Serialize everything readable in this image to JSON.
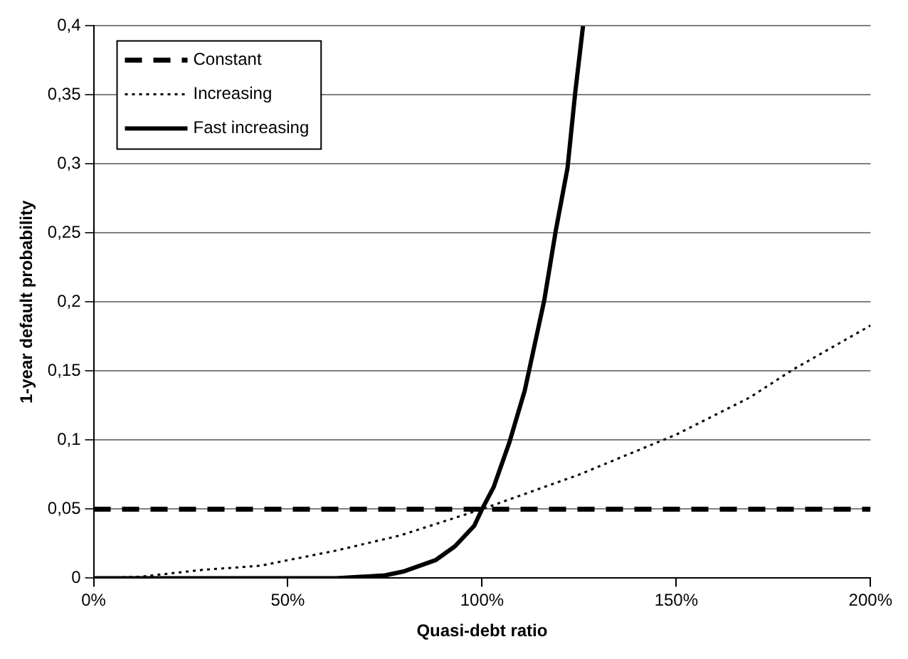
{
  "chart_data": {
    "type": "line",
    "xlabel": "Quasi-debt ratio",
    "ylabel": "1-year default probability",
    "xlim": [
      0,
      200
    ],
    "xticks": [
      {
        "value": 0,
        "label": "0%"
      },
      {
        "value": 50,
        "label": "50%"
      },
      {
        "value": 100,
        "label": "100%"
      },
      {
        "value": 150,
        "label": "150%"
      },
      {
        "value": 200,
        "label": "200%"
      }
    ],
    "ylim": [
      0,
      0.4
    ],
    "yticks": [
      0,
      {
        "value": 0.05,
        "label": "0,05"
      },
      {
        "value": 0.1,
        "label": "0,1"
      },
      {
        "value": 0.15,
        "label": "0,15"
      },
      {
        "value": 0.2,
        "label": "0,2"
      },
      {
        "value": 0.25,
        "label": "0,25"
      },
      {
        "value": 0.3,
        "label": "0,3"
      },
      {
        "value": 0.35,
        "label": "0,35"
      },
      {
        "value": 0.4,
        "label": "0,4"
      }
    ],
    "grid": "y",
    "legend": "top left",
    "marker": "none",
    "series": [
      {
        "name": "Constant",
        "color": "#000000",
        "line_style": "dashed",
        "x": [
          0,
          200
        ],
        "values": [
          0.05,
          0.05
        ]
      },
      {
        "name": "Increasing",
        "color": "#000000",
        "line_style": "dotted",
        "x": [
          0,
          12,
          28,
          43,
          50,
          62.5,
          79,
          100,
          125,
          150,
          169,
          180,
          200
        ],
        "values": [
          0,
          0.001,
          0.006,
          0.009,
          0.013,
          0.02,
          0.031,
          0.05,
          0.075,
          0.104,
          0.131,
          0.151,
          0.183
        ]
      },
      {
        "name": "Fast increasing",
        "color": "#000000",
        "line_style": "solid",
        "x": [
          0,
          62.5,
          75,
          80,
          88,
          93,
          98,
          100,
          103,
          107,
          111,
          116,
          119,
          122,
          124,
          126
        ],
        "values": [
          0,
          0,
          0.002,
          0.005,
          0.013,
          0.023,
          0.038,
          0.05,
          0.066,
          0.098,
          0.136,
          0.201,
          0.252,
          0.297,
          0.352,
          0.4
        ]
      }
    ]
  }
}
